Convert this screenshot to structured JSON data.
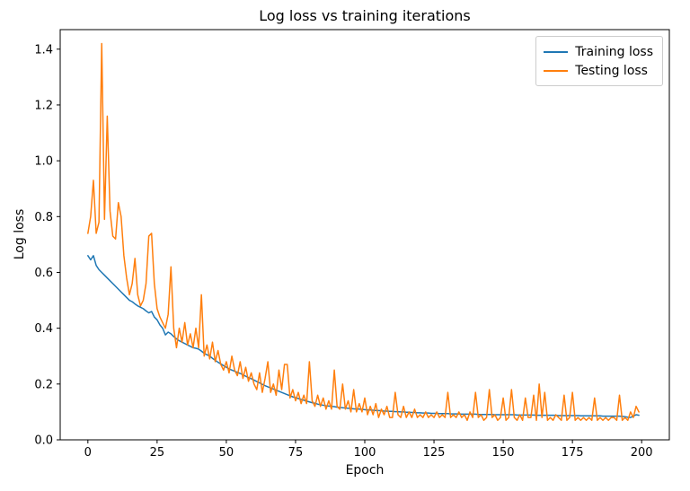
{
  "figure": {
    "background": "#ffffff"
  },
  "chart_data": {
    "type": "line",
    "title": "Log loss vs training iterations",
    "xlabel": "Epoch",
    "ylabel": "Log loss",
    "xlim": [
      -10,
      210
    ],
    "ylim": [
      0,
      1.47
    ],
    "xticks": [
      0,
      25,
      50,
      75,
      100,
      125,
      150,
      175,
      200
    ],
    "yticks": [
      0.0,
      0.2,
      0.4,
      0.6,
      0.8,
      1.0,
      1.2,
      1.4
    ],
    "grid": false,
    "legend": {
      "position": "upper right"
    },
    "x_mode": "index-as-epoch",
    "series": [
      {
        "name": "Training loss",
        "color": "#1f77b4",
        "values": [
          0.66,
          0.645,
          0.66,
          0.625,
          0.61,
          0.6,
          0.59,
          0.58,
          0.57,
          0.56,
          0.55,
          0.54,
          0.53,
          0.52,
          0.51,
          0.5,
          0.495,
          0.487,
          0.48,
          0.475,
          0.47,
          0.462,
          0.455,
          0.46,
          0.44,
          0.43,
          0.412,
          0.4,
          0.376,
          0.386,
          0.38,
          0.37,
          0.362,
          0.355,
          0.35,
          0.345,
          0.34,
          0.335,
          0.33,
          0.328,
          0.325,
          0.318,
          0.31,
          0.305,
          0.3,
          0.292,
          0.285,
          0.278,
          0.272,
          0.266,
          0.26,
          0.254,
          0.25,
          0.246,
          0.242,
          0.238,
          0.233,
          0.228,
          0.223,
          0.219,
          0.214,
          0.209,
          0.204,
          0.199,
          0.194,
          0.19,
          0.186,
          0.182,
          0.178,
          0.174,
          0.17,
          0.166,
          0.162,
          0.158,
          0.154,
          0.151,
          0.148,
          0.145,
          0.142,
          0.139,
          0.136,
          0.133,
          0.131,
          0.128,
          0.126,
          0.124,
          0.122,
          0.121,
          0.12,
          0.119,
          0.117,
          0.116,
          0.115,
          0.114,
          0.113,
          0.112,
          0.111,
          0.11,
          0.11,
          0.109,
          0.108,
          0.107,
          0.107,
          0.106,
          0.105,
          0.105,
          0.104,
          0.103,
          0.103,
          0.102,
          0.102,
          0.101,
          0.101,
          0.1,
          0.1,
          0.099,
          0.099,
          0.098,
          0.098,
          0.097,
          0.097,
          0.096,
          0.096,
          0.096,
          0.095,
          0.095,
          0.095,
          0.094,
          0.094,
          0.094,
          0.094,
          0.093,
          0.093,
          0.093,
          0.093,
          0.092,
          0.092,
          0.092,
          0.092,
          0.092,
          0.092,
          0.091,
          0.091,
          0.091,
          0.091,
          0.091,
          0.091,
          0.09,
          0.09,
          0.09,
          0.09,
          0.09,
          0.09,
          0.09,
          0.09,
          0.089,
          0.089,
          0.089,
          0.089,
          0.089,
          0.089,
          0.089,
          0.088,
          0.088,
          0.088,
          0.088,
          0.088,
          0.088,
          0.088,
          0.088,
          0.087,
          0.087,
          0.087,
          0.087,
          0.087,
          0.087,
          0.087,
          0.087,
          0.086,
          0.086,
          0.086,
          0.086,
          0.086,
          0.086,
          0.086,
          0.086,
          0.085,
          0.085,
          0.085,
          0.085,
          0.085,
          0.085,
          0.085,
          0.084,
          0.083,
          0.081,
          0.08,
          0.085,
          0.09,
          0.088
        ]
      },
      {
        "name": "Testing loss",
        "color": "#ff7f0e",
        "values": [
          0.74,
          0.8,
          0.93,
          0.74,
          0.78,
          1.42,
          0.79,
          1.16,
          0.82,
          0.73,
          0.72,
          0.85,
          0.8,
          0.66,
          0.58,
          0.52,
          0.56,
          0.65,
          0.52,
          0.48,
          0.5,
          0.56,
          0.73,
          0.74,
          0.56,
          0.47,
          0.44,
          0.42,
          0.4,
          0.45,
          0.62,
          0.4,
          0.33,
          0.4,
          0.35,
          0.42,
          0.34,
          0.38,
          0.33,
          0.4,
          0.33,
          0.52,
          0.3,
          0.34,
          0.29,
          0.35,
          0.28,
          0.32,
          0.27,
          0.25,
          0.28,
          0.24,
          0.3,
          0.25,
          0.23,
          0.28,
          0.22,
          0.26,
          0.21,
          0.24,
          0.2,
          0.18,
          0.24,
          0.17,
          0.22,
          0.28,
          0.17,
          0.2,
          0.16,
          0.25,
          0.18,
          0.27,
          0.27,
          0.15,
          0.18,
          0.14,
          0.17,
          0.13,
          0.16,
          0.13,
          0.28,
          0.14,
          0.12,
          0.16,
          0.12,
          0.15,
          0.11,
          0.14,
          0.11,
          0.25,
          0.12,
          0.11,
          0.2,
          0.11,
          0.14,
          0.1,
          0.18,
          0.1,
          0.13,
          0.1,
          0.15,
          0.09,
          0.12,
          0.09,
          0.13,
          0.08,
          0.11,
          0.09,
          0.12,
          0.08,
          0.08,
          0.17,
          0.09,
          0.08,
          0.12,
          0.08,
          0.1,
          0.08,
          0.11,
          0.08,
          0.09,
          0.08,
          0.1,
          0.08,
          0.09,
          0.08,
          0.1,
          0.08,
          0.09,
          0.08,
          0.17,
          0.08,
          0.09,
          0.08,
          0.1,
          0.08,
          0.09,
          0.07,
          0.1,
          0.08,
          0.17,
          0.08,
          0.09,
          0.07,
          0.08,
          0.18,
          0.08,
          0.09,
          0.07,
          0.08,
          0.15,
          0.07,
          0.08,
          0.18,
          0.08,
          0.07,
          0.09,
          0.07,
          0.15,
          0.08,
          0.08,
          0.16,
          0.07,
          0.2,
          0.08,
          0.17,
          0.07,
          0.08,
          0.07,
          0.09,
          0.08,
          0.07,
          0.16,
          0.07,
          0.08,
          0.17,
          0.07,
          0.08,
          0.07,
          0.08,
          0.07,
          0.08,
          0.07,
          0.15,
          0.07,
          0.08,
          0.07,
          0.08,
          0.07,
          0.08,
          0.08,
          0.07,
          0.16,
          0.07,
          0.08,
          0.07,
          0.1,
          0.08,
          0.12,
          0.1
        ]
      }
    ]
  }
}
